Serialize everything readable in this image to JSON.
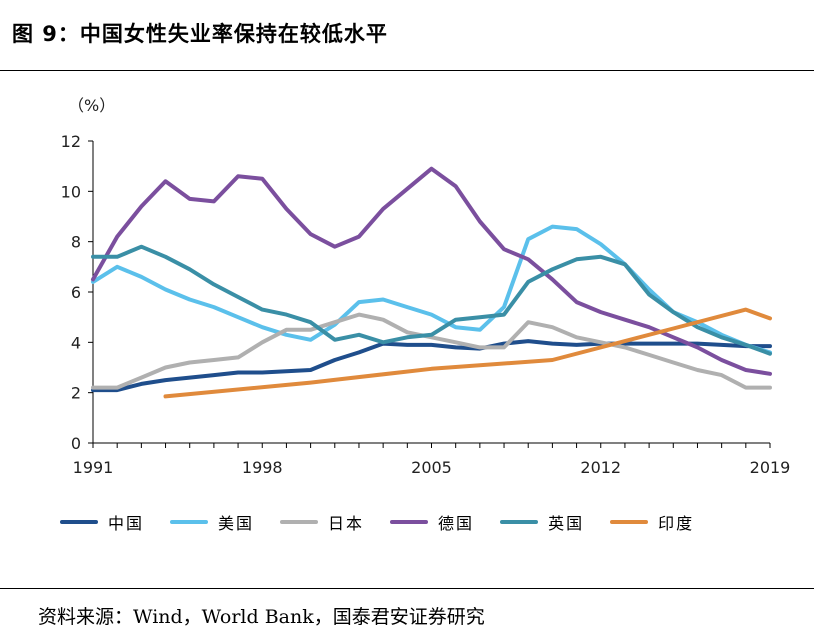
{
  "figure": {
    "title": "图 9：中国女性失业率保持在较低水平",
    "source": "资料来源：Wind，World Bank，国泰君安证券研究"
  },
  "chart_data": {
    "type": "line",
    "unit_label": "（%）",
    "title": "",
    "xlabel": "",
    "ylabel": "",
    "ylim": [
      0,
      12
    ],
    "xlim": [
      1991,
      2019
    ],
    "yticks": [
      0,
      2,
      4,
      6,
      8,
      10,
      12
    ],
    "xticks": [
      1991,
      1998,
      2005,
      2012,
      2019
    ],
    "grid": false,
    "legend_position": "bottom",
    "series": [
      {
        "name": "中国",
        "color": "#1f4e8c",
        "x": [
          1991,
          1992,
          1993,
          1994,
          1995,
          1996,
          1997,
          1998,
          1999,
          2000,
          2001,
          2002,
          2003,
          2004,
          2005,
          2006,
          2007,
          2008,
          2009,
          2010,
          2011,
          2012,
          2013,
          2014,
          2015,
          2016,
          2017,
          2018,
          2019
        ],
        "values": [
          2.1,
          2.1,
          2.35,
          2.5,
          2.6,
          2.7,
          2.8,
          2.8,
          2.85,
          2.9,
          3.3,
          3.6,
          3.95,
          3.9,
          3.9,
          3.8,
          3.75,
          3.95,
          4.05,
          3.95,
          3.9,
          3.95,
          3.95,
          3.95,
          3.95,
          3.95,
          3.9,
          3.85,
          3.85
        ]
      },
      {
        "name": "美国",
        "color": "#5bc0eb",
        "x": [
          1991,
          1992,
          1993,
          1994,
          1995,
          1996,
          1997,
          1998,
          1999,
          2000,
          2001,
          2002,
          2003,
          2004,
          2005,
          2006,
          2007,
          2008,
          2009,
          2010,
          2011,
          2012,
          2013,
          2014,
          2015,
          2016,
          2017,
          2018,
          2019
        ],
        "values": [
          6.4,
          7.0,
          6.6,
          6.1,
          5.7,
          5.4,
          5.0,
          4.6,
          4.3,
          4.1,
          4.7,
          5.6,
          5.7,
          5.4,
          5.1,
          4.6,
          4.5,
          5.4,
          8.1,
          8.6,
          8.5,
          7.9,
          7.1,
          6.1,
          5.2,
          4.8,
          4.3,
          3.9,
          3.6
        ]
      },
      {
        "name": "日本",
        "color": "#b0b0b0",
        "x": [
          1991,
          1992,
          1993,
          1994,
          1995,
          1996,
          1997,
          1998,
          1999,
          2000,
          2001,
          2002,
          2003,
          2004,
          2005,
          2006,
          2007,
          2008,
          2009,
          2010,
          2011,
          2012,
          2013,
          2014,
          2015,
          2016,
          2017,
          2018,
          2019
        ],
        "values": [
          2.2,
          2.2,
          2.6,
          3.0,
          3.2,
          3.3,
          3.4,
          4.0,
          4.5,
          4.5,
          4.8,
          5.1,
          4.9,
          4.4,
          4.2,
          4.0,
          3.8,
          3.8,
          4.8,
          4.6,
          4.2,
          4.0,
          3.8,
          3.5,
          3.2,
          2.9,
          2.7,
          2.2,
          2.2
        ]
      },
      {
        "name": "德国",
        "color": "#7b4f9e",
        "x": [
          1991,
          1992,
          1993,
          1994,
          1995,
          1996,
          1997,
          1998,
          1999,
          2000,
          2001,
          2002,
          2003,
          2004,
          2005,
          2006,
          2007,
          2008,
          2009,
          2010,
          2011,
          2012,
          2013,
          2014,
          2015,
          2016,
          2017,
          2018,
          2019
        ],
        "values": [
          6.5,
          8.2,
          9.4,
          10.4,
          9.7,
          9.6,
          10.6,
          10.5,
          9.3,
          8.3,
          7.8,
          8.2,
          9.3,
          10.1,
          10.9,
          10.2,
          8.8,
          7.7,
          7.3,
          6.5,
          5.6,
          5.2,
          4.9,
          4.6,
          4.2,
          3.8,
          3.3,
          2.9,
          2.75
        ]
      },
      {
        "name": "英国",
        "color": "#3a8fa6",
        "x": [
          1991,
          1992,
          1993,
          1994,
          1995,
          1996,
          1997,
          1998,
          1999,
          2000,
          2001,
          2002,
          2003,
          2004,
          2005,
          2006,
          2007,
          2008,
          2009,
          2010,
          2011,
          2012,
          2013,
          2014,
          2015,
          2016,
          2017,
          2018,
          2019
        ],
        "values": [
          7.4,
          7.4,
          7.8,
          7.4,
          6.9,
          6.3,
          5.8,
          5.3,
          5.1,
          4.8,
          4.1,
          4.3,
          4.0,
          4.2,
          4.3,
          4.9,
          5.0,
          5.1,
          6.4,
          6.9,
          7.3,
          7.4,
          7.1,
          5.9,
          5.2,
          4.6,
          4.2,
          3.9,
          3.55
        ]
      },
      {
        "name": "印度",
        "color": "#e08a3c",
        "x": [
          1994,
          2000,
          2005,
          2010,
          2015,
          2018,
          2019
        ],
        "values": [
          1.85,
          2.4,
          2.95,
          3.3,
          4.55,
          5.3,
          4.95
        ]
      }
    ]
  }
}
